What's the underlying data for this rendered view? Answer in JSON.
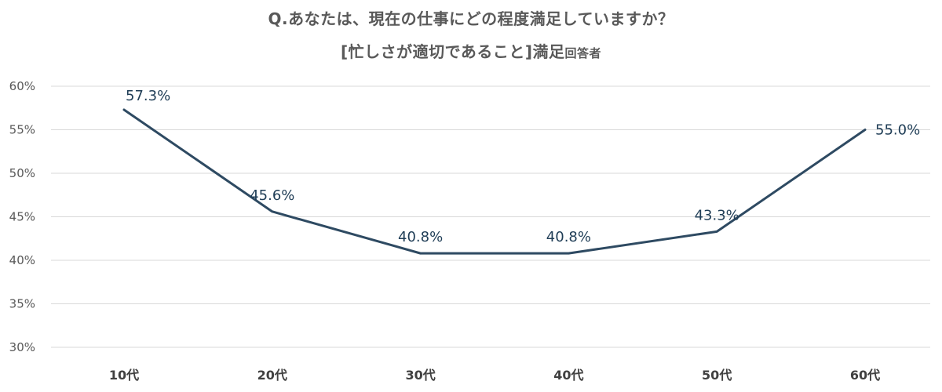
{
  "chart_data": {
    "type": "line",
    "title": "Q.あなたは、現在の仕事にどの程度満足していますか？",
    "subtitle_main": "[忙しさが適切であること]満足",
    "subtitle_suffix": "回答者",
    "categories": [
      "10代",
      "20代",
      "30代",
      "40代",
      "50代",
      "60代"
    ],
    "series": [
      {
        "values": [
          57.3,
          45.6,
          40.8,
          40.8,
          43.3,
          55.0
        ]
      }
    ],
    "data_labels": [
      "57.3%",
      "45.6%",
      "40.8%",
      "40.8%",
      "43.3%",
      "55.0%"
    ],
    "y_ticks": [
      30,
      35,
      40,
      45,
      50,
      55,
      60
    ],
    "y_tick_labels": [
      "30%",
      "35%",
      "40%",
      "45%",
      "50%",
      "55%",
      "60%"
    ],
    "ylim": [
      30,
      60
    ],
    "grid": true,
    "line_color": "#2e4a62",
    "gridline_color": "#d9d9d9"
  }
}
